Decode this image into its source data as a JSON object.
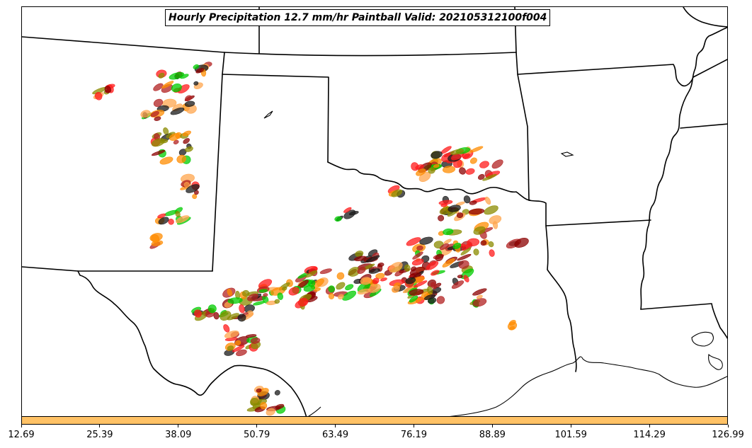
{
  "title": "Hourly Precipitation 12.7 mm/hr Paintball Valid: 202105312100f004",
  "colorbar": {
    "ticks": [
      "12.69",
      "25.39",
      "38.09",
      "50.79",
      "63.49",
      "76.19",
      "88.89",
      "101.59",
      "114.29",
      "126.99"
    ],
    "fill_color": "#ffc266"
  },
  "colors": {
    "member_colors": [
      "#ff8c00",
      "#ff1a1a",
      "#8b0000",
      "#00cc00",
      "#8b8b00",
      "#1a1a1a",
      "#ffa64d",
      "#b22222"
    ],
    "boundary": "#000000"
  }
}
